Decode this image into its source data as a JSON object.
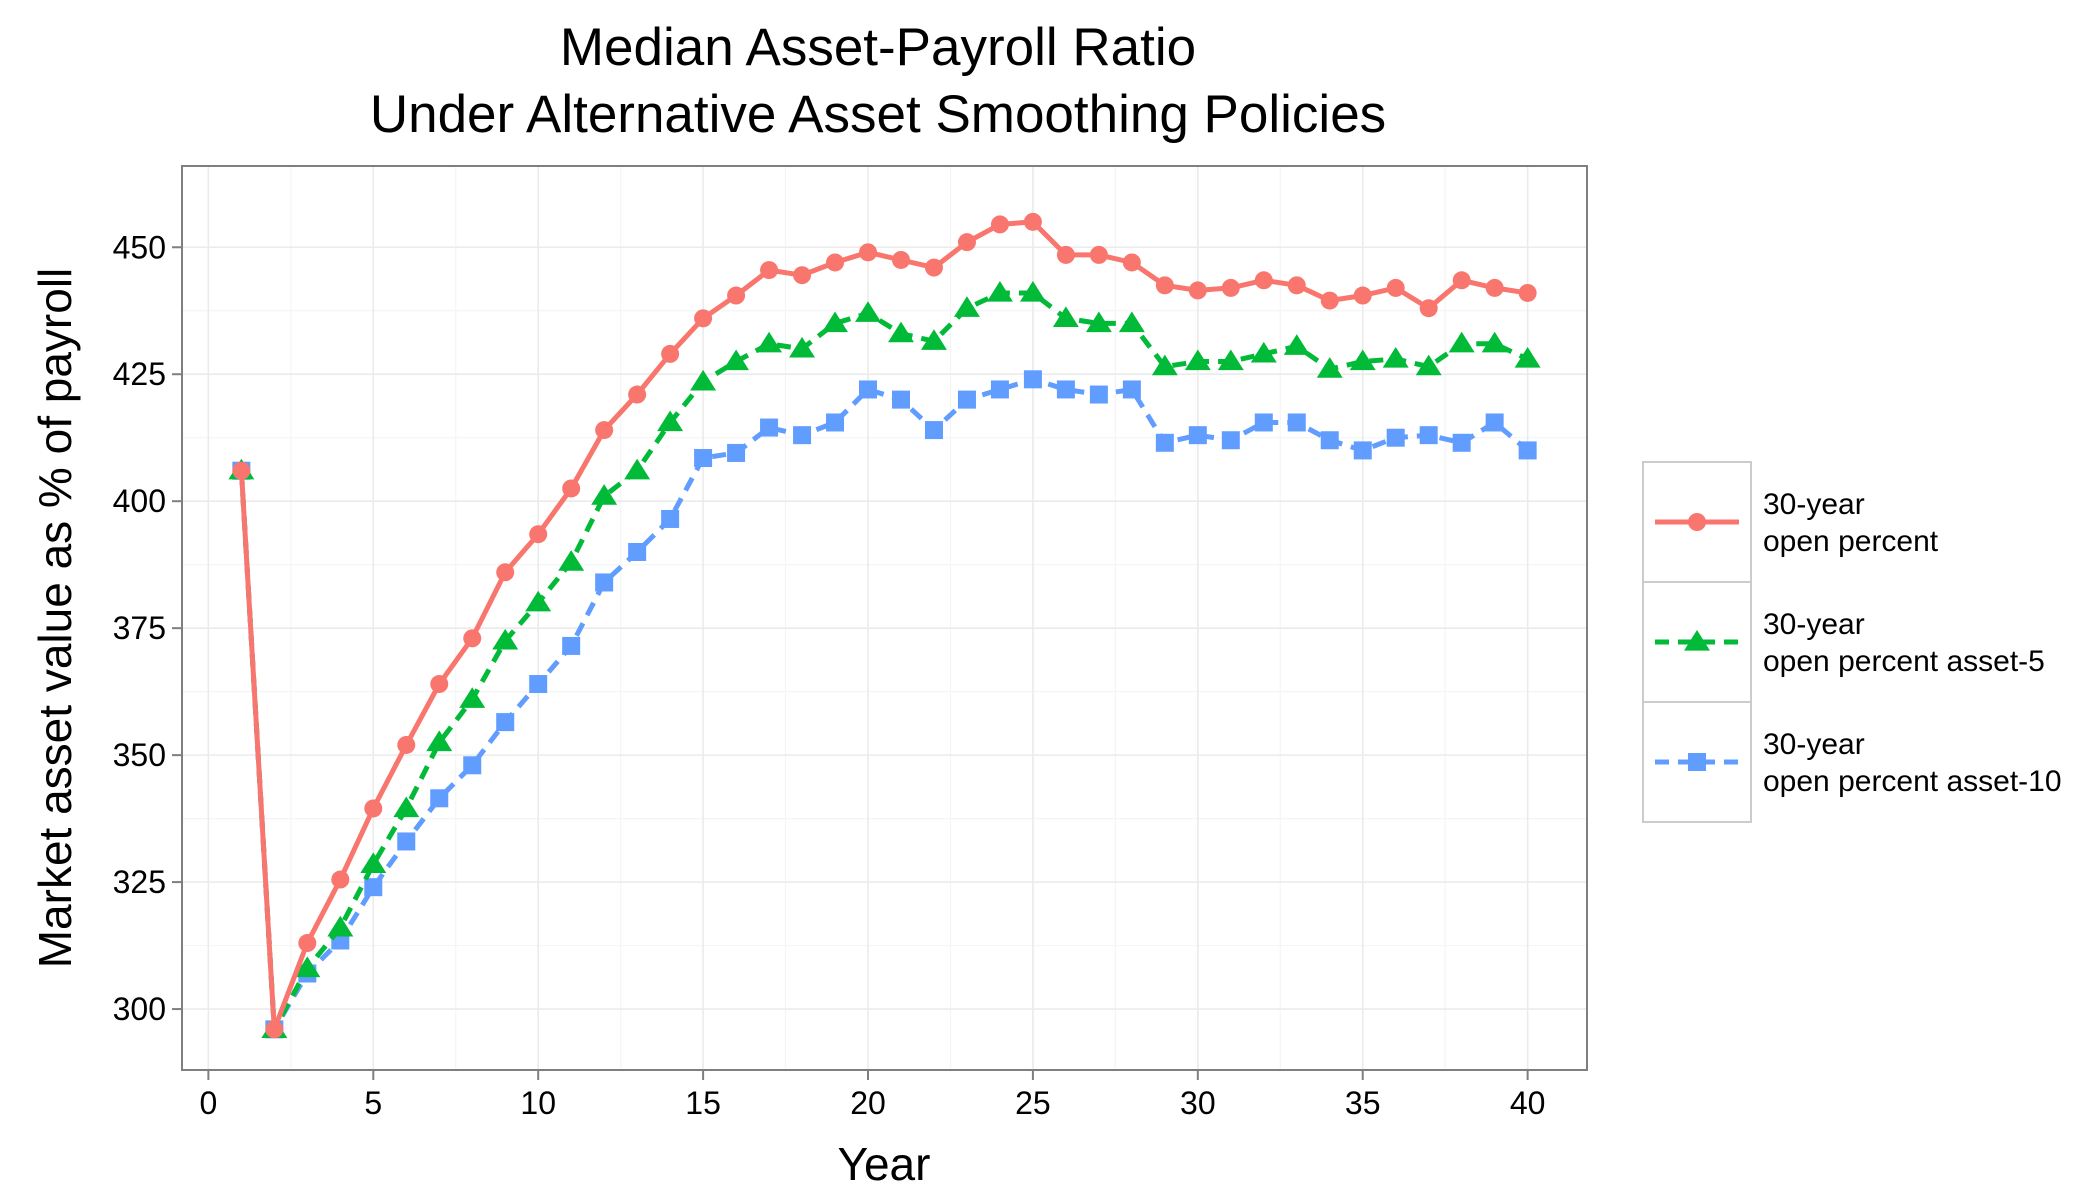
{
  "chart_data": {
    "type": "line",
    "title": [
      "Median Asset-Payroll Ratio",
      "Under Alternative Asset Smoothing Policies"
    ],
    "xlabel": "Year",
    "ylabel": "Market asset value as % of payroll",
    "xlim": [
      -0.8,
      41.8
    ],
    "ylim": [
      288,
      466
    ],
    "xticks": [
      0,
      5,
      10,
      15,
      20,
      25,
      30,
      35,
      40
    ],
    "yticks": [
      300,
      325,
      350,
      375,
      400,
      425,
      450
    ],
    "grid": true,
    "legend_position": "right",
    "x": [
      1,
      2,
      3,
      4,
      5,
      6,
      7,
      8,
      9,
      10,
      11,
      12,
      13,
      14,
      15,
      16,
      17,
      18,
      19,
      20,
      21,
      22,
      23,
      24,
      25,
      26,
      27,
      28,
      29,
      30,
      31,
      32,
      33,
      34,
      35,
      36,
      37,
      38,
      39,
      40
    ],
    "series": [
      {
        "name_lines": [
          "30-year",
          "open percent"
        ],
        "color": "#F8766D",
        "dash": "solid",
        "marker": "circle",
        "values": [
          406,
          296,
          313,
          325.5,
          339.5,
          352,
          364,
          373,
          386,
          393.5,
          402.5,
          414,
          421,
          429,
          436,
          440.5,
          445.5,
          444.5,
          447,
          449,
          447.5,
          446,
          451,
          454.5,
          455,
          448.5,
          448.5,
          447,
          442.5,
          441.5,
          442,
          443.5,
          442.5,
          439.5,
          440.5,
          442,
          438,
          443.5,
          442,
          441
        ]
      },
      {
        "name_lines": [
          "30-year",
          "open percent asset-5"
        ],
        "color": "#00BA38",
        "dash": "dashed",
        "marker": "triangle",
        "values": [
          406,
          296,
          308,
          316,
          328.5,
          339.5,
          352.5,
          361,
          372.5,
          380,
          388,
          401,
          406,
          415.5,
          423.5,
          427.5,
          431,
          430,
          435,
          437,
          433,
          431.5,
          438,
          441,
          441,
          436,
          435,
          435,
          426.5,
          427.5,
          427.5,
          429,
          430.5,
          426,
          427.5,
          428,
          426.5,
          431,
          431,
          428
        ]
      },
      {
        "name_lines": [
          "30-year",
          "open percent asset-10"
        ],
        "color": "#619CFF",
        "dash": "dashed",
        "marker": "square",
        "values": [
          406,
          296,
          307,
          313.5,
          324,
          333,
          341.5,
          348,
          356.5,
          364,
          371.5,
          384,
          390,
          396.5,
          408.5,
          409.5,
          414.5,
          413,
          415.5,
          422,
          420,
          414,
          420,
          422,
          424,
          422,
          421,
          422,
          411.5,
          413,
          412,
          415.5,
          415.5,
          412,
          410,
          412.5,
          413,
          411.5,
          415.5,
          410
        ]
      }
    ]
  }
}
